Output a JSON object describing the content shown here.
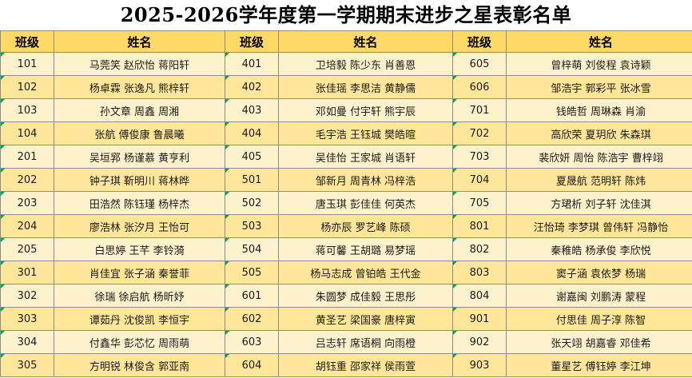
{
  "title": "2025-2026学年度第一学期期末进步之星表彰名单",
  "headers": {
    "class": "班级",
    "names": "姓名"
  },
  "rows": [
    [
      {
        "c": "101",
        "n": "马莞笑  赵欣怡  蒋阳轩"
      },
      {
        "c": "401",
        "n": "卫培毅  陈少东  肖善恩"
      },
      {
        "c": "605",
        "n": "曾梓萌  刘俊程  袁诗颖"
      }
    ],
    [
      {
        "c": "102",
        "n": "杨卓霖  张逸凡  熊梓轩"
      },
      {
        "c": "402",
        "n": "张佳瑶  李思洁  黄静儒"
      },
      {
        "c": "606",
        "n": "邹浩宇  郭彩平  张冰雪"
      }
    ],
    [
      {
        "c": "103",
        "n": "孙文章  周鑫  周湘"
      },
      {
        "c": "403",
        "n": "邓如曼  付宇轩  熊宇辰"
      },
      {
        "c": "701",
        "n": "钱皓哲  周琳森  肖渝"
      }
    ],
    [
      {
        "c": "104",
        "n": "张航  傅俊康  鲁晨曦"
      },
      {
        "c": "404",
        "n": "毛宇浩  王钰城  樊皓暄"
      },
      {
        "c": "702",
        "n": "高欣荣  夏玥欣  朱森琪"
      }
    ],
    [
      {
        "c": "201",
        "n": "吴垣郛  杨谨慕  黄亨利"
      },
      {
        "c": "405",
        "n": "吴佳怡  王家城  肖语轩"
      },
      {
        "c": "703",
        "n": "裴欣妍  周怡  陈浩宇  曹梓翊"
      }
    ],
    [
      {
        "c": "202",
        "n": "钟子琪  靳明川  蒋林晔"
      },
      {
        "c": "501",
        "n": "邹新月  周青林  冯梓浩"
      },
      {
        "c": "704",
        "n": "夏晟航  范明轩  陈炜"
      }
    ],
    [
      {
        "c": "203",
        "n": "田浩然  陈钰瑾  杨梓杰"
      },
      {
        "c": "502",
        "n": "唐玉琪  彭佳佳  何英杰"
      },
      {
        "c": "705",
        "n": "方珺析  刘子轩  沈佳淇"
      }
    ],
    [
      {
        "c": "204",
        "n": "廖浩林  张汐月  王怡可"
      },
      {
        "c": "503",
        "n": "杨亦辰  罗艺峰  陈硕"
      },
      {
        "c": "801",
        "n": "汪怡琦  李梦琪  曾伟轩  冯静怡"
      }
    ],
    [
      {
        "c": "205",
        "n": "白思婷  王芊  李铃漪"
      },
      {
        "c": "504",
        "n": "蒋可馨  王胡璐  易梦瑶"
      },
      {
        "c": "802",
        "n": "秦稚皓  杨承俊  李欣悦"
      }
    ],
    [
      {
        "c": "301",
        "n": "肖佳宜  张子涵  秦誉菲"
      },
      {
        "c": "505",
        "n": "杨马志成  曾铂皓  王代金"
      },
      {
        "c": "803",
        "n": "窦子涵  袁依梦  杨瑞"
      }
    ],
    [
      {
        "c": "302",
        "n": "徐瑞  徐启航  杨昕妤"
      },
      {
        "c": "601",
        "n": "朱圆梦  成佳毅  王思彤"
      },
      {
        "c": "804",
        "n": "谢嘉闽  刘鹏涛  蒙程"
      }
    ],
    [
      {
        "c": "303",
        "n": "谭茹丹  沈俊凯  李恒宇"
      },
      {
        "c": "602",
        "n": "黄圣艺  梁国豪  唐梓寅"
      },
      {
        "c": "901",
        "n": "付思佳  周子淳  陈智"
      }
    ],
    [
      {
        "c": "304",
        "n": "付鑫华  彭芯忆  周雨萌"
      },
      {
        "c": "603",
        "n": "吕志轩  席语桐  向雨橙"
      },
      {
        "c": "902",
        "n": "张天翊  胡嘉睿  邓佳希"
      }
    ],
    [
      {
        "c": "305",
        "n": "方明锐  林俊含  郭亚南"
      },
      {
        "c": "604",
        "n": "胡钰重  邵家祥  侯雨萱"
      },
      {
        "c": "903",
        "n": "董星艺  傅钰婷  李江坤"
      }
    ]
  ]
}
